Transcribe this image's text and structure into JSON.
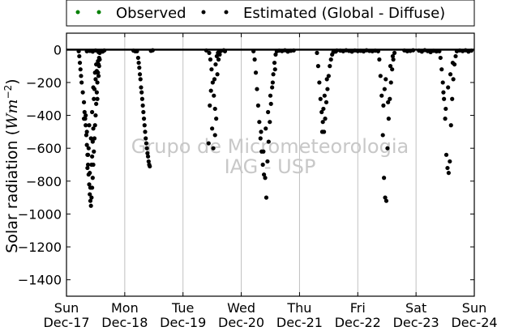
{
  "chart_data": {
    "type": "scatter",
    "title": "",
    "ylabel": "Solar radiation ($Wm^{-2}$)",
    "ylabel_text": "Solar radiation (",
    "ylabel_math_w": "Wm",
    "ylabel_math_exp": "−2",
    "ylabel_close": ")",
    "xlim": [
      "2017-12-17",
      "2017-12-24"
    ],
    "ylim": [
      -1500,
      100
    ],
    "yticks": [
      0,
      -200,
      -400,
      -600,
      -800,
      -1000,
      -1200,
      -1400
    ],
    "xticks": [
      {
        "day": "Sun",
        "date": "Dec-17"
      },
      {
        "day": "Mon",
        "date": "Dec-18"
      },
      {
        "day": "Tue",
        "date": "Dec-19"
      },
      {
        "day": "Wed",
        "date": "Dec-20"
      },
      {
        "day": "Thu",
        "date": "Dec-21"
      },
      {
        "day": "Fri",
        "date": "Dec-22"
      },
      {
        "day": "Sat",
        "date": "Dec-23"
      },
      {
        "day": "Sun",
        "date": "Dec-24"
      }
    ],
    "grid": "vertical",
    "legend_position": "top, outside plot",
    "watermark": [
      "Grupo de Micrometeorologia",
      "IAG - USP"
    ],
    "series": [
      {
        "name": "Observed",
        "color": "#008000",
        "points": []
      },
      {
        "name": "Estimated (Global - Diffuse)",
        "color": "#000000",
        "points": [
          [
            0.21,
            -10
          ],
          [
            0.22,
            -40
          ],
          [
            0.23,
            -80
          ],
          [
            0.24,
            -120
          ],
          [
            0.25,
            -160
          ],
          [
            0.26,
            -200
          ],
          [
            0.28,
            -260
          ],
          [
            0.3,
            -320
          ],
          [
            0.31,
            -380
          ],
          [
            0.32,
            -420
          ],
          [
            0.33,
            -460
          ],
          [
            0.34,
            -520
          ],
          [
            0.35,
            -580
          ],
          [
            0.36,
            -640
          ],
          [
            0.37,
            -700
          ],
          [
            0.38,
            -760
          ],
          [
            0.39,
            -820
          ],
          [
            0.4,
            -880
          ],
          [
            0.41,
            -920
          ],
          [
            0.42,
            -950
          ],
          [
            0.43,
            -900
          ],
          [
            0.44,
            -840
          ],
          [
            0.45,
            -780
          ],
          [
            0.46,
            -700
          ],
          [
            0.47,
            -620
          ],
          [
            0.48,
            -540
          ],
          [
            0.49,
            -460
          ],
          [
            0.5,
            -400
          ],
          [
            0.51,
            -330
          ],
          [
            0.52,
            -260
          ],
          [
            0.53,
            -200
          ],
          [
            0.54,
            -140
          ],
          [
            0.55,
            -90
          ],
          [
            0.56,
            -50
          ],
          [
            0.57,
            -20
          ],
          [
            0.58,
            -10
          ],
          [
            0.3,
            -420
          ],
          [
            0.33,
            -400
          ],
          [
            0.35,
            -500
          ],
          [
            0.36,
            -720
          ],
          [
            0.38,
            -600
          ],
          [
            0.4,
            -750
          ],
          [
            0.41,
            -840
          ],
          [
            0.43,
            -700
          ],
          [
            0.44,
            -650
          ],
          [
            0.45,
            -560
          ],
          [
            0.46,
            -480
          ],
          [
            0.47,
            -300
          ],
          [
            0.48,
            -240
          ],
          [
            0.5,
            -180
          ],
          [
            0.52,
            -130
          ],
          [
            0.53,
            -300
          ],
          [
            0.55,
            -160
          ],
          [
            0.56,
            -100
          ],
          [
            0.57,
            -60
          ],
          [
            0.44,
            -380
          ],
          [
            0.42,
            -540
          ],
          [
            0.39,
            -460
          ],
          [
            0.37,
            -640
          ],
          [
            0.46,
            -230
          ],
          [
            0.49,
            -140
          ],
          [
            0.51,
            -90
          ],
          [
            0.54,
            -70
          ],
          [
            0.35,
            -10
          ],
          [
            0.4,
            -8
          ],
          [
            0.45,
            -12
          ],
          [
            0.5,
            -5
          ],
          [
            0.55,
            -15
          ],
          [
            1.21,
            -10
          ],
          [
            1.23,
            -50
          ],
          [
            1.25,
            -110
          ],
          [
            1.27,
            -180
          ],
          [
            1.29,
            -260
          ],
          [
            1.31,
            -340
          ],
          [
            1.33,
            -420
          ],
          [
            1.35,
            -500
          ],
          [
            1.37,
            -570
          ],
          [
            1.39,
            -630
          ],
          [
            1.41,
            -680
          ],
          [
            1.43,
            -710
          ],
          [
            1.3,
            -300
          ],
          [
            1.32,
            -380
          ],
          [
            1.34,
            -460
          ],
          [
            1.36,
            -540
          ],
          [
            1.38,
            -600
          ],
          [
            1.4,
            -650
          ],
          [
            1.42,
            -700
          ],
          [
            1.28,
            -230
          ],
          [
            1.26,
            -150
          ],
          [
            1.24,
            -80
          ],
          [
            2.45,
            -20
          ],
          [
            2.47,
            -60
          ],
          [
            2.49,
            -120
          ],
          [
            2.51,
            -200
          ],
          [
            2.53,
            -280
          ],
          [
            2.55,
            -360
          ],
          [
            2.57,
            -420
          ],
          [
            2.52,
            -600
          ],
          [
            2.5,
            -480
          ],
          [
            2.54,
            -180
          ],
          [
            2.56,
            -90
          ],
          [
            2.58,
            -40
          ],
          [
            2.6,
            -20
          ],
          [
            2.62,
            -10
          ],
          [
            2.48,
            -250
          ],
          [
            2.46,
            -340
          ],
          [
            2.44,
            -570
          ],
          [
            2.59,
            -150
          ],
          [
            2.61,
            -60
          ],
          [
            2.63,
            -30
          ],
          [
            2.55,
            -520
          ],
          [
            3.21,
            -10
          ],
          [
            3.23,
            -60
          ],
          [
            3.25,
            -140
          ],
          [
            3.27,
            -240
          ],
          [
            3.29,
            -340
          ],
          [
            3.31,
            -440
          ],
          [
            3.33,
            -540
          ],
          [
            3.35,
            -620
          ],
          [
            3.37,
            -700
          ],
          [
            3.39,
            -760
          ],
          [
            3.41,
            -780
          ],
          [
            3.43,
            -900
          ],
          [
            3.45,
            -680
          ],
          [
            3.47,
            -560
          ],
          [
            3.49,
            -440
          ],
          [
            3.51,
            -330
          ],
          [
            3.53,
            -230
          ],
          [
            3.55,
            -150
          ],
          [
            3.57,
            -80
          ],
          [
            3.59,
            -30
          ],
          [
            3.61,
            -10
          ],
          [
            3.34,
            -500
          ],
          [
            3.38,
            -620
          ],
          [
            3.42,
            -480
          ],
          [
            3.46,
            -380
          ],
          [
            3.5,
            -280
          ],
          [
            3.54,
            -200
          ],
          [
            3.58,
            -120
          ],
          [
            4.3,
            -20
          ],
          [
            4.32,
            -100
          ],
          [
            4.34,
            -200
          ],
          [
            4.36,
            -300
          ],
          [
            4.38,
            -380
          ],
          [
            4.4,
            -440
          ],
          [
            4.42,
            -500
          ],
          [
            4.44,
            -420
          ],
          [
            4.46,
            -320
          ],
          [
            4.48,
            -240
          ],
          [
            4.5,
            -160
          ],
          [
            4.52,
            -100
          ],
          [
            4.54,
            -60
          ],
          [
            4.56,
            -30
          ],
          [
            4.58,
            -15
          ],
          [
            4.6,
            -8
          ],
          [
            4.62,
            -12
          ],
          [
            4.64,
            -5
          ],
          [
            4.41,
            -360
          ],
          [
            4.43,
            -280
          ],
          [
            4.47,
            -180
          ],
          [
            4.39,
            -500
          ],
          [
            5.35,
            -10
          ],
          [
            5.37,
            -60
          ],
          [
            5.39,
            -160
          ],
          [
            5.41,
            -280
          ],
          [
            5.43,
            -520
          ],
          [
            5.45,
            -780
          ],
          [
            5.47,
            -900
          ],
          [
            5.49,
            -920
          ],
          [
            5.51,
            -600
          ],
          [
            5.53,
            -420
          ],
          [
            5.55,
            -300
          ],
          [
            5.57,
            -200
          ],
          [
            5.59,
            -120
          ],
          [
            5.61,
            -60
          ],
          [
            5.63,
            -20
          ],
          [
            5.44,
            -340
          ],
          [
            5.46,
            -240
          ],
          [
            5.48,
            -180
          ],
          [
            5.52,
            -320
          ],
          [
            5.56,
            -100
          ],
          [
            5.6,
            -40
          ],
          [
            6.4,
            -10
          ],
          [
            6.42,
            -50
          ],
          [
            6.44,
            -120
          ],
          [
            6.46,
            -200
          ],
          [
            6.48,
            -300
          ],
          [
            6.5,
            -420
          ],
          [
            6.52,
            -640
          ],
          [
            6.54,
            -720
          ],
          [
            6.56,
            -750
          ],
          [
            6.58,
            -680
          ],
          [
            6.6,
            -460
          ],
          [
            6.62,
            -300
          ],
          [
            6.64,
            -180
          ],
          [
            6.66,
            -90
          ],
          [
            6.68,
            -40
          ],
          [
            6.7,
            -10
          ],
          [
            6.47,
            -260
          ],
          [
            6.51,
            -360
          ],
          [
            6.55,
            -230
          ],
          [
            6.59,
            -150
          ],
          [
            6.63,
            -80
          ],
          [
            5.8,
            -5
          ],
          [
            5.85,
            -10
          ],
          [
            5.9,
            -8
          ],
          [
            5.95,
            -4
          ],
          [
            6.05,
            -6
          ],
          [
            6.1,
            -12
          ],
          [
            6.15,
            -3
          ],
          [
            6.2,
            -9
          ],
          [
            6.25,
            -15
          ],
          [
            6.3,
            -7
          ],
          [
            6.35,
            -11
          ],
          [
            6.75,
            -5
          ],
          [
            6.8,
            -9
          ],
          [
            6.85,
            -4
          ],
          [
            6.9,
            -12
          ],
          [
            6.95,
            -6
          ],
          [
            4.7,
            -6
          ],
          [
            4.75,
            -10
          ],
          [
            4.8,
            -4
          ],
          [
            4.85,
            -8
          ],
          [
            4.9,
            -12
          ],
          [
            4.95,
            -5
          ],
          [
            5.0,
            -9
          ],
          [
            5.05,
            -7
          ],
          [
            5.1,
            -11
          ],
          [
            5.15,
            -4
          ],
          [
            5.2,
            -8
          ],
          [
            5.25,
            -10
          ],
          [
            5.3,
            -6
          ],
          [
            2.4,
            -5
          ],
          [
            2.65,
            -8
          ],
          [
            2.7,
            -4
          ],
          [
            2.72,
            -10
          ],
          [
            3.65,
            -6
          ],
          [
            3.7,
            -9
          ],
          [
            3.75,
            -4
          ],
          [
            3.8,
            -12
          ],
          [
            3.85,
            -7
          ],
          [
            3.9,
            -5
          ],
          [
            0.6,
            -8
          ],
          [
            0.62,
            -12
          ],
          [
            0.65,
            -5
          ],
          [
            1.15,
            -6
          ],
          [
            1.18,
            -10
          ],
          [
            1.45,
            -7
          ],
          [
            1.48,
            -4
          ]
        ]
      }
    ]
  }
}
